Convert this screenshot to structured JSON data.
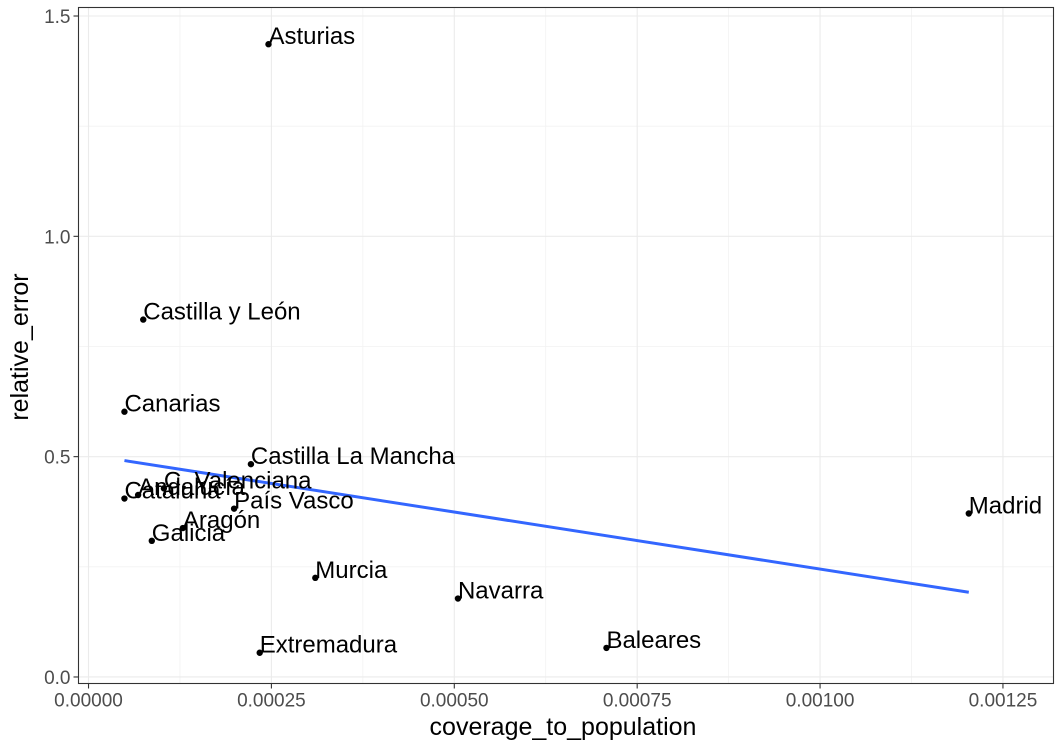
{
  "chart_data": {
    "type": "scatter",
    "title": "",
    "xlabel": "coverage_to_population",
    "ylabel": "relative_error",
    "xlim": [
      -1.37e-05,
      0.0013191
    ],
    "ylim": [
      -0.0148,
      1.5193
    ],
    "x_ticks": [
      0.0,
      0.00025,
      0.0005,
      0.00075,
      0.001,
      0.00125
    ],
    "x_tick_labels": [
      "0.00000",
      "0.00025",
      "0.00050",
      "0.00075",
      "0.00100",
      "0.00125"
    ],
    "y_ticks": [
      0.0,
      0.5,
      1.0,
      1.5
    ],
    "y_tick_labels": [
      "0.0",
      "0.5",
      "1.0",
      "1.5"
    ],
    "grid": true,
    "theme": "bw",
    "points": [
      {
        "label": "Asturias",
        "x": 0.000246,
        "y": 1.436
      },
      {
        "label": "Castilla y León",
        "x": 7.48e-05,
        "y": 0.811
      },
      {
        "label": "Canarias",
        "x": 4.91e-05,
        "y": 0.602
      },
      {
        "label": "Castilla La Mancha",
        "x": 0.000222,
        "y": 0.483
      },
      {
        "label": "C. Valenciana",
        "x": 0.000103,
        "y": 0.428
      },
      {
        "label": "Andalucía",
        "x": 6.78e-05,
        "y": 0.413
      },
      {
        "label": "Cataluña",
        "x": 4.91e-05,
        "y": 0.405
      },
      {
        "label": "País Vasco",
        "x": 0.000199,
        "y": 0.382
      },
      {
        "label": "Aragón",
        "x": 0.000129,
        "y": 0.338
      },
      {
        "label": "Galicia",
        "x": 8.65e-05,
        "y": 0.309
      },
      {
        "label": "Murcia",
        "x": 0.00031,
        "y": 0.225
      },
      {
        "label": "Navarra",
        "x": 0.000505,
        "y": 0.178
      },
      {
        "label": "Baleares",
        "x": 0.000708,
        "y": 0.066
      },
      {
        "label": "Extremadura",
        "x": 0.000234,
        "y": 0.055
      },
      {
        "label": "Madrid",
        "x": 0.0012033,
        "y": 0.371
      }
    ],
    "trend_line": {
      "method": "linear",
      "color": "#3366ff",
      "x": [
        4.91e-05,
        0.0012033
      ],
      "y": [
        0.4911,
        0.1922
      ]
    },
    "point_color": "#000000"
  }
}
